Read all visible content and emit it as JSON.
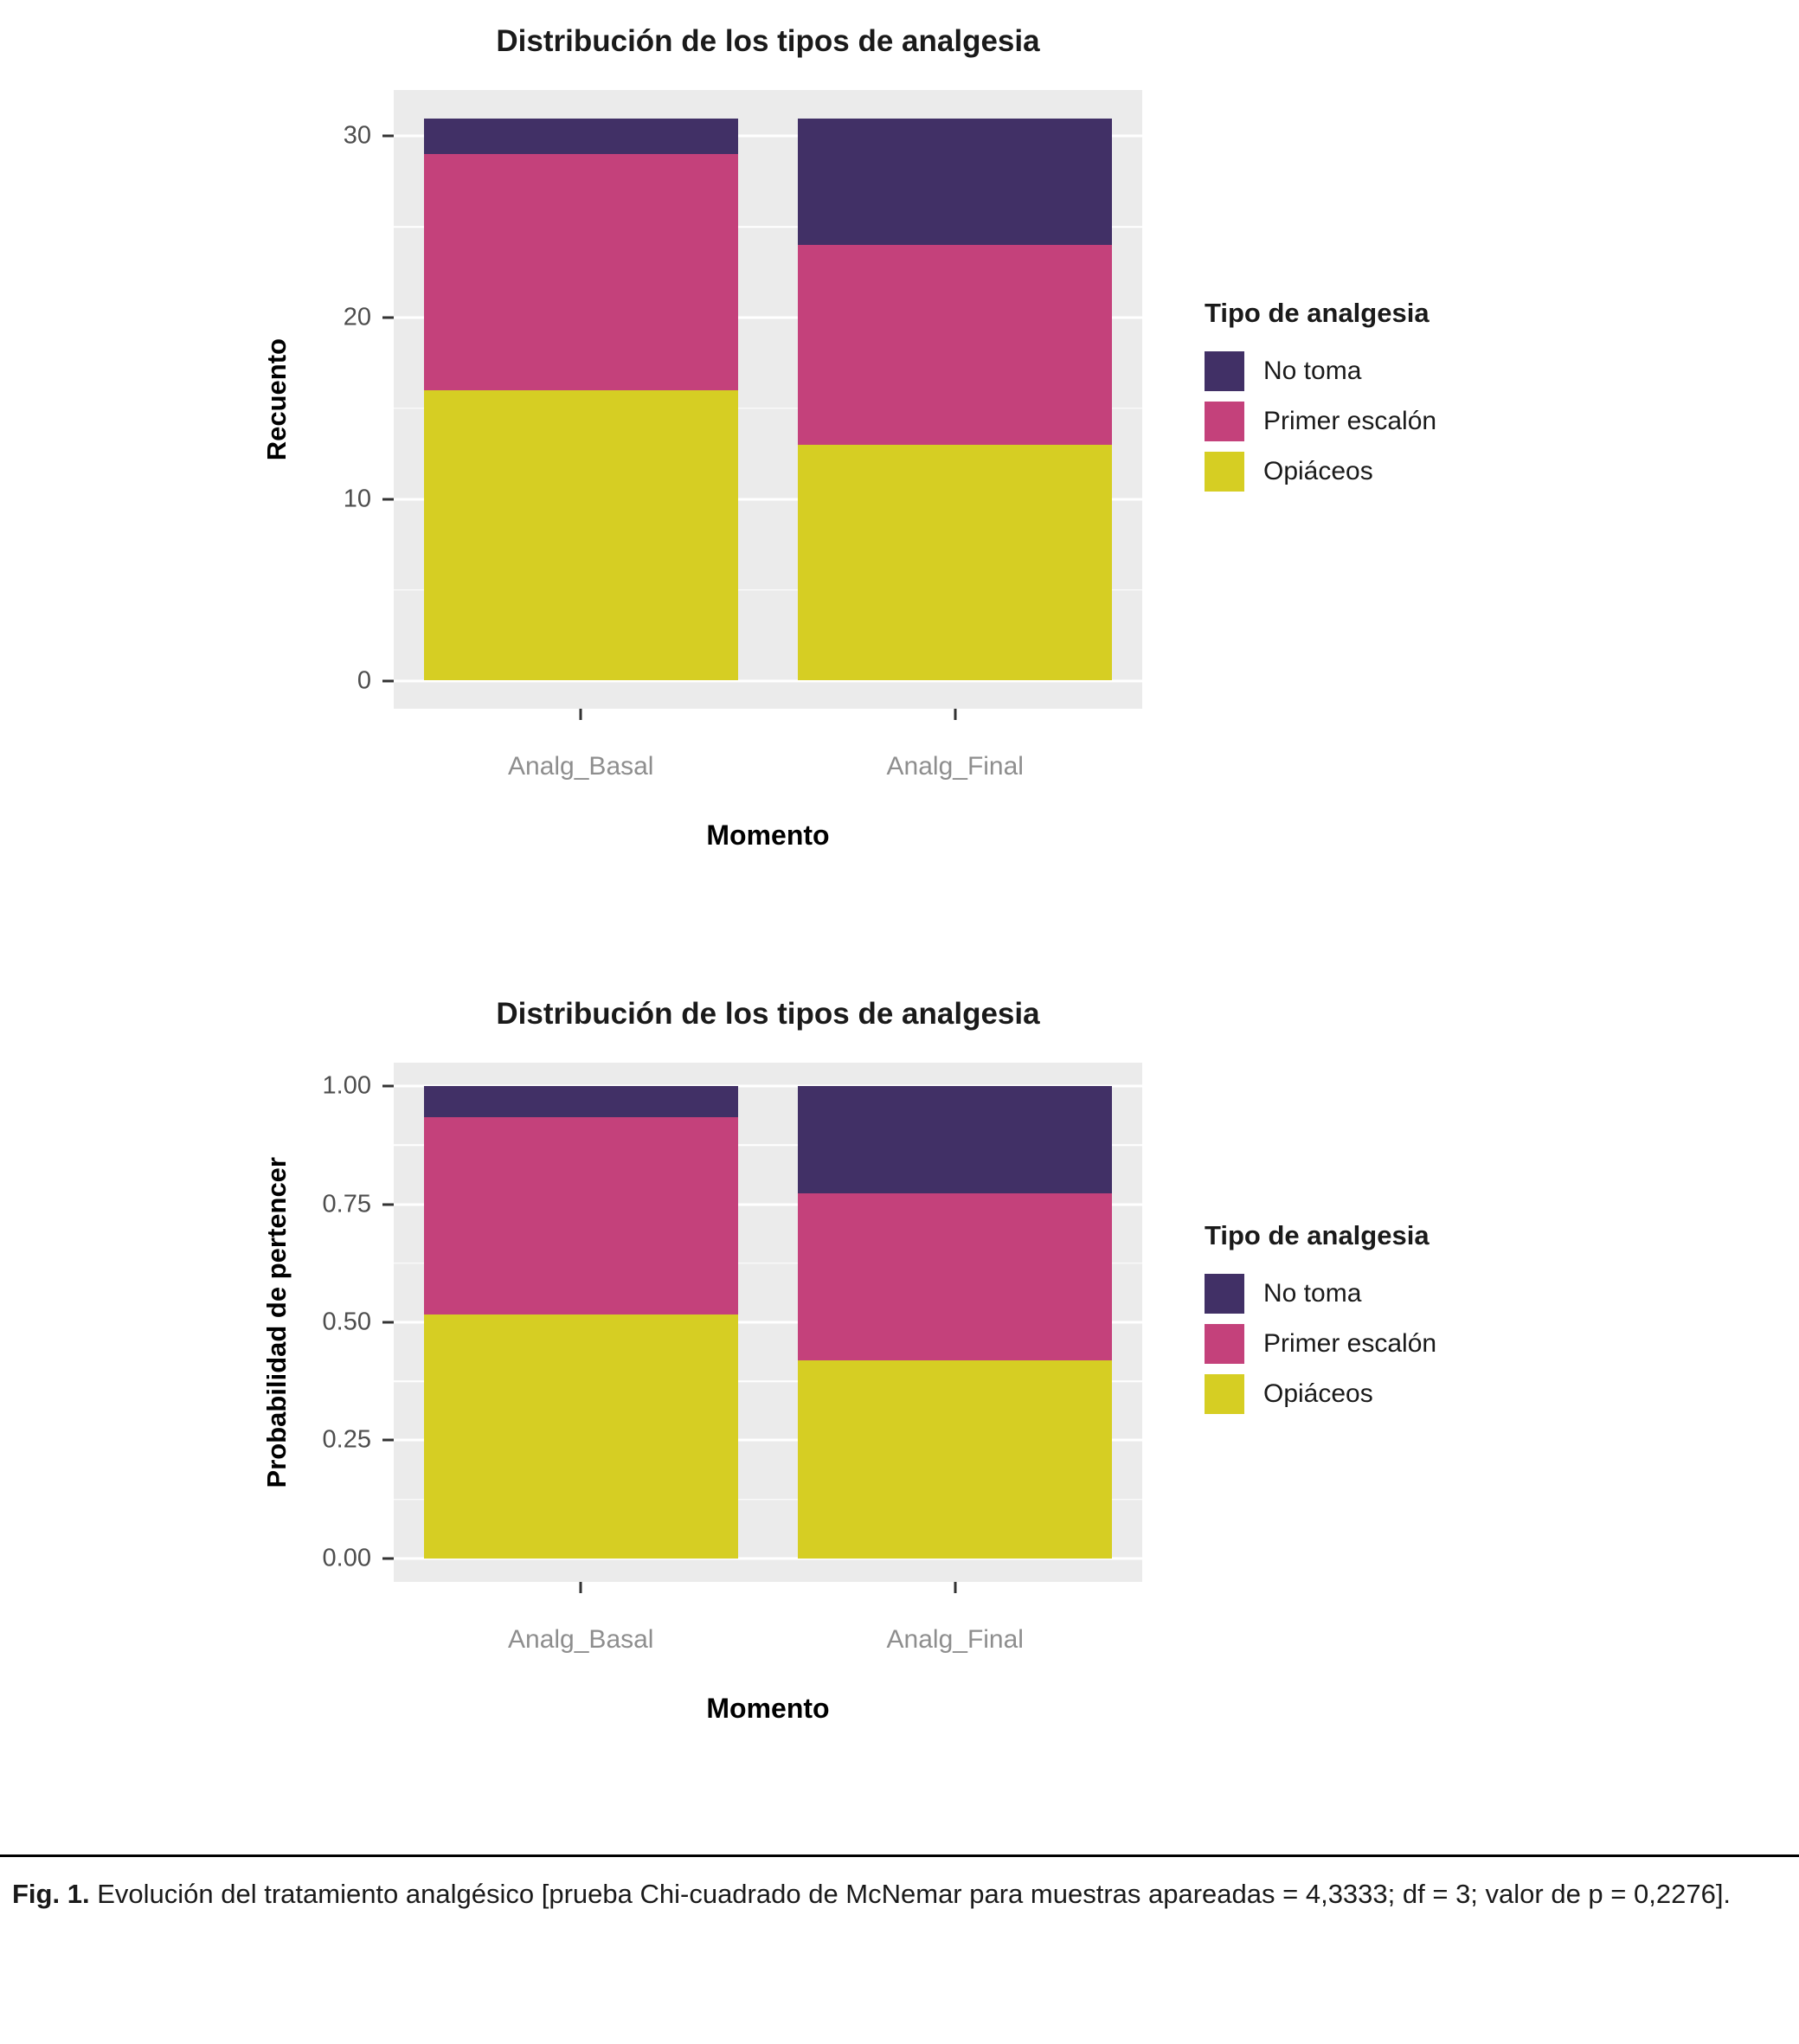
{
  "caption": {
    "label": "Fig. 1.",
    "text": "Evolución del tratamiento analgésico [prueba Chi-cuadrado de McNemar para muestras apareadas = 4,3333; df = 3; valor de p = 0,2276]."
  },
  "colors": {
    "no_toma": "#413066",
    "primer_escalon": "#C4417B",
    "opiaceos": "#D6CE23",
    "panel_background": "#EBEBEB",
    "gridline": "#FFFFFF",
    "axis_text": "#4d4d4d",
    "category_text": "#8e8e8e"
  },
  "chart_data": [
    {
      "type": "bar",
      "stacked": true,
      "title": "Distribución de los tipos de analgesia",
      "xlabel": "Momento",
      "ylabel": "Recuento",
      "categories": [
        "Analg_Basal",
        "Analg_Final"
      ],
      "series": [
        {
          "name": "Opiáceos",
          "color": "#D6CE23",
          "values": [
            16,
            13
          ]
        },
        {
          "name": "Primer escalón",
          "color": "#C4417B",
          "values": [
            13,
            11
          ]
        },
        {
          "name": "No toma",
          "color": "#413066",
          "values": [
            2,
            7
          ]
        }
      ],
      "ylim": [
        0,
        31
      ],
      "yticks": [
        0,
        10,
        20,
        30
      ],
      "ytick_labels": [
        "0",
        "10",
        "20",
        "30"
      ],
      "grid": true,
      "legend_title": "Tipo de analgesia",
      "legend_position": "right",
      "legend_order": [
        "No toma",
        "Primer escalón",
        "Opiáceos"
      ]
    },
    {
      "type": "bar",
      "stacked": true,
      "title": "Distribución de los tipos de analgesia",
      "xlabel": "Momento",
      "ylabel": "Probabilidad de pertencer",
      "categories": [
        "Analg_Basal",
        "Analg_Final"
      ],
      "series": [
        {
          "name": "Opiáceos",
          "color": "#D6CE23",
          "values": [
            0.516,
            0.419
          ]
        },
        {
          "name": "Primer escalón",
          "color": "#C4417B",
          "values": [
            0.419,
            0.355
          ]
        },
        {
          "name": "No toma",
          "color": "#413066",
          "values": [
            0.065,
            0.226
          ]
        }
      ],
      "ylim": [
        0,
        1
      ],
      "yticks": [
        0,
        0.25,
        0.5,
        0.75,
        1
      ],
      "ytick_labels": [
        "0.00",
        "0.25",
        "0.50",
        "0.75",
        "1.00"
      ],
      "grid": true,
      "legend_title": "Tipo de analgesia",
      "legend_position": "right",
      "legend_order": [
        "No toma",
        "Primer escalón",
        "Opiáceos"
      ]
    }
  ]
}
